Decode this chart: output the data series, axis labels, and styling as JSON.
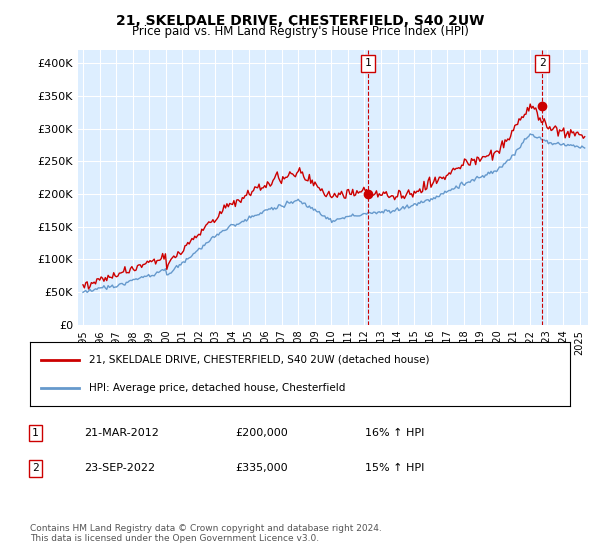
{
  "title": "21, SKELDALE DRIVE, CHESTERFIELD, S40 2UW",
  "subtitle": "Price paid vs. HM Land Registry's House Price Index (HPI)",
  "ylabel_ticks": [
    "£0",
    "£50K",
    "£100K",
    "£150K",
    "£200K",
    "£250K",
    "£300K",
    "£350K",
    "£400K"
  ],
  "ylim": [
    0,
    420000
  ],
  "xlim_start": 1995.0,
  "xlim_end": 2025.5,
  "sale1_date": 2012.22,
  "sale1_price": 200000,
  "sale2_date": 2022.73,
  "sale2_price": 335000,
  "legend_line1": "21, SKELDALE DRIVE, CHESTERFIELD, S40 2UW (detached house)",
  "legend_line2": "HPI: Average price, detached house, Chesterfield",
  "table_row1": [
    "1",
    "21-MAR-2012",
    "£200,000",
    "16% ↑ HPI"
  ],
  "table_row2": [
    "2",
    "23-SEP-2022",
    "£335,000",
    "15% ↑ HPI"
  ],
  "footnote": "Contains HM Land Registry data © Crown copyright and database right 2024.\nThis data is licensed under the Open Government Licence v3.0.",
  "red_color": "#cc0000",
  "blue_color": "#6699cc",
  "bg_color": "#ddeeff",
  "grid_color": "#ffffff",
  "sale_marker_color": "#cc0000"
}
